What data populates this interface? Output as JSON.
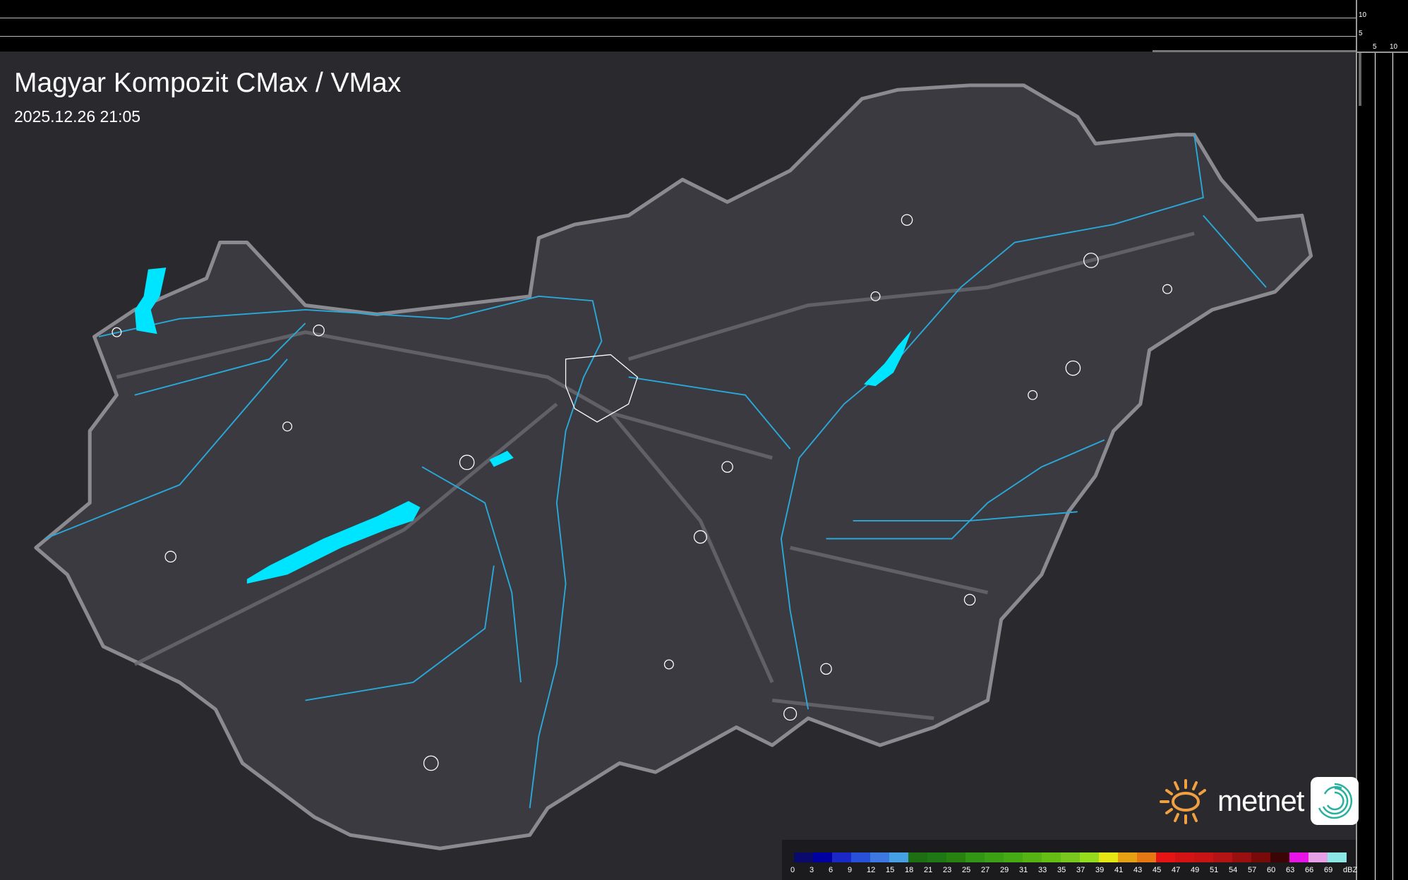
{
  "title": "Magyar Kompozit CMax / VMax",
  "timestamp": "2025.12.26 21:05",
  "scale": {
    "vertical_labels": [
      "10",
      "5"
    ],
    "horizontal_labels": [
      "5",
      "10"
    ]
  },
  "logo": {
    "text": "metnet",
    "sun_color": "#f0a040",
    "app_icon": "swirl-icon"
  },
  "colors": {
    "background": "#2a2a2e",
    "country": "#3a3a40",
    "border": "#8a8a90",
    "rivers": "#2aa8d8",
    "lakes": "#00e5ff",
    "towns": "#ffffff"
  },
  "legend": {
    "unit": "dBZ",
    "labels": [
      "0",
      "3",
      "6",
      "9",
      "12",
      "15",
      "18",
      "21",
      "23",
      "25",
      "27",
      "29",
      "31",
      "33",
      "35",
      "37",
      "39",
      "41",
      "43",
      "45",
      "47",
      "49",
      "51",
      "54",
      "57",
      "60",
      "63",
      "66",
      "69"
    ],
    "colors": [
      "#0a0a6e",
      "#0000a0",
      "#1a28c8",
      "#2850d8",
      "#3c78e0",
      "#46a0e6",
      "#1e6e14",
      "#1e7814",
      "#28820f",
      "#329614",
      "#3ca014",
      "#46aa14",
      "#55b414",
      "#64be14",
      "#78c81e",
      "#96dc1e",
      "#e6e614",
      "#e6a014",
      "#e67814",
      "#e61414",
      "#d21414",
      "#c81414",
      "#b41414",
      "#9a0f0f",
      "#780a0a",
      "#3c0505",
      "#e614e6",
      "#e6a0e6",
      "#8ce6e6"
    ]
  }
}
